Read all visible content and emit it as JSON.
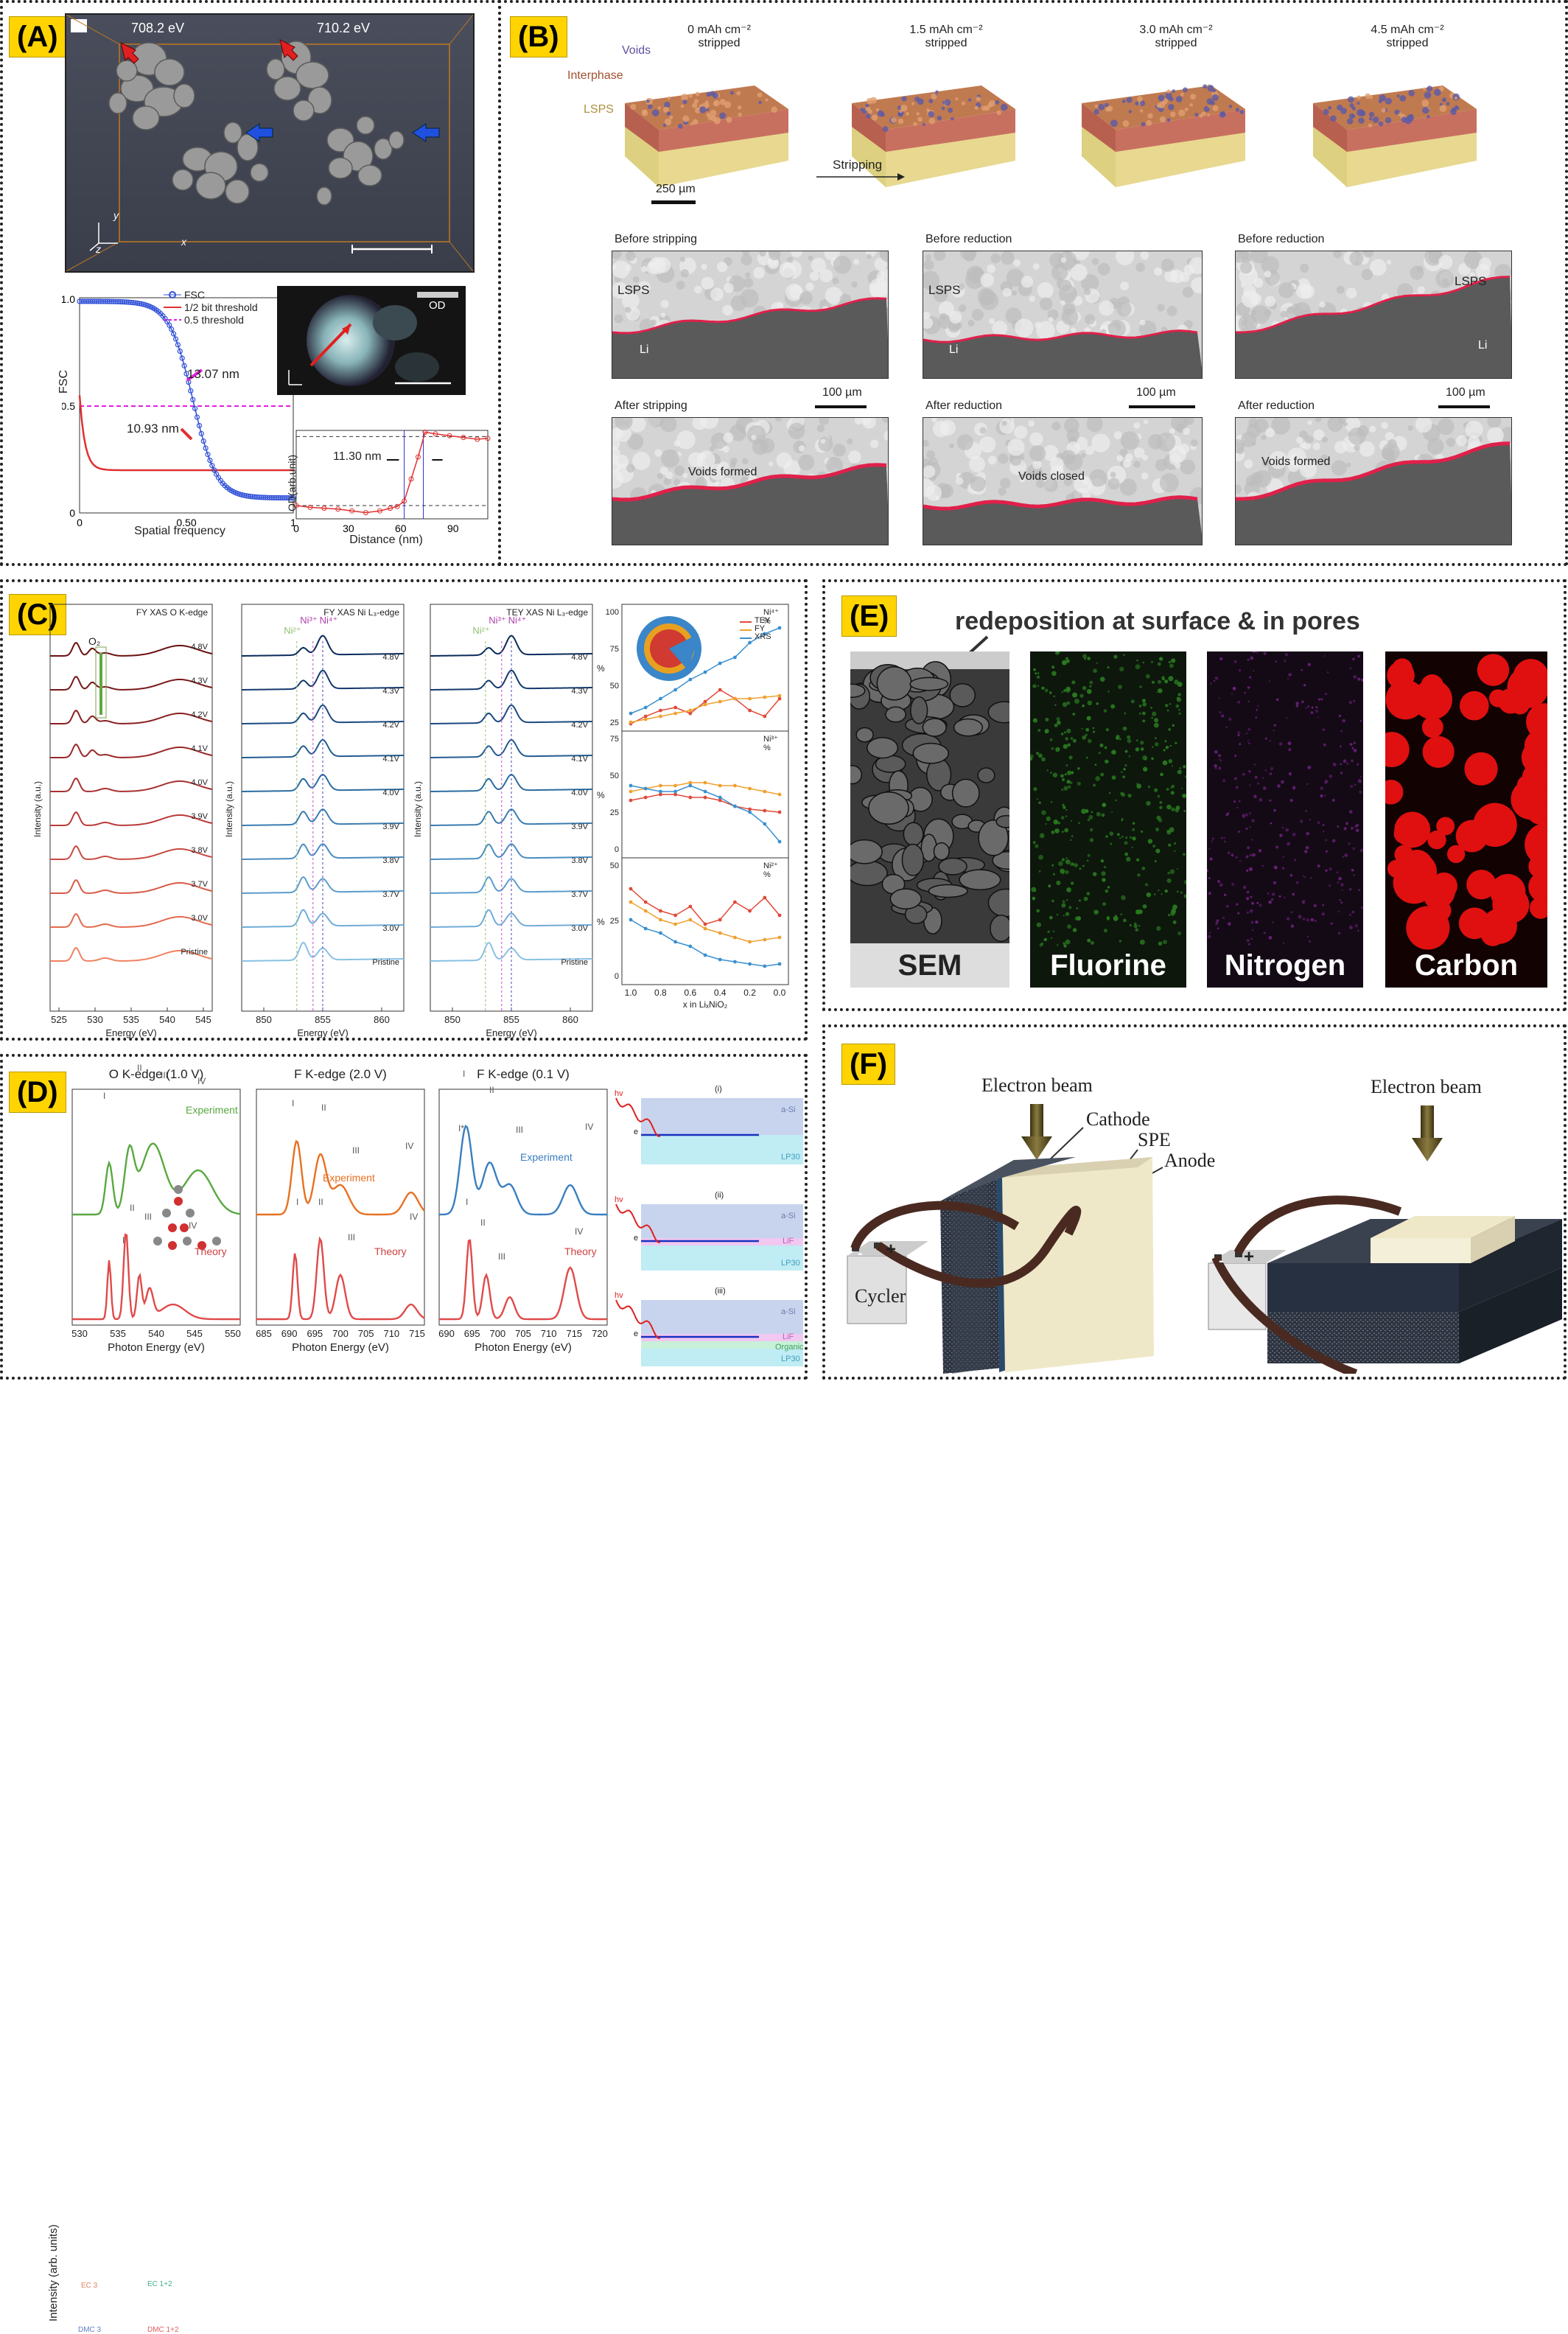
{
  "panels": {
    "a": {
      "label": "(A)"
    },
    "b": {
      "label": "(B)"
    },
    "c": {
      "label": "(C)"
    },
    "d": {
      "label": "(D)"
    },
    "e": {
      "label": "(E)"
    },
    "f": {
      "label": "(F)"
    }
  },
  "a": {
    "energy1": "708.2 eV",
    "energy2": "710.2 eV",
    "axis_y": "y",
    "axis_x": "x",
    "axis_z": "z",
    "fsc_legend": [
      "FSC",
      "1/2 bit threshold",
      "0.5 threshold"
    ],
    "fsc_ylabel": "FSC",
    "fsc_xlabel": "Spatial frequency",
    "fsc_ann1": "13.07 nm",
    "fsc_ann2": "10.93 nm",
    "od_label": "OD",
    "od_ylabel": "OD(arb.unit)",
    "od_xlabel": "Distance (nm)",
    "od_ann": "11.30 nm",
    "fsc_yticks": [
      "1.0",
      "0.5",
      "0"
    ],
    "fsc_xticks": [
      "0",
      "0.50",
      "1"
    ],
    "od_xticks": [
      "0",
      "30",
      "60",
      "90"
    ]
  },
  "b": {
    "labels": [
      "Voids",
      "Interphase",
      "LSPS"
    ],
    "stages": [
      "0 mAh cm⁻²\nstripped",
      "1.5 mAh cm⁻²\nstripped",
      "3.0 mAh cm⁻²\nstripped",
      "4.5 mAh cm⁻²\nstripped"
    ],
    "stage_line1": [
      "0 mAh cm⁻²",
      "1.5 mAh cm⁻²",
      "3.0 mAh cm⁻²",
      "4.5 mAh cm⁻²"
    ],
    "stage_line2": [
      "stripped",
      "stripped",
      "stripped",
      "stripped"
    ],
    "scale_top": "250 µm",
    "stripping": "Stripping",
    "top_titles": [
      "Before stripping",
      "Before reduction",
      "Before reduction"
    ],
    "bottom_titles": [
      "After stripping",
      "After reduction",
      "After reduction"
    ],
    "lsps": "LSPS",
    "li": "Li",
    "scale": "100 µm",
    "voids": [
      "Voids formed",
      "Voids closed",
      "Voids formed"
    ]
  },
  "c": {
    "titles": [
      "FY XAS O K-edge",
      "FY XAS Ni L₃-edge",
      "TEY XAS Ni L₃-edge"
    ],
    "o_voltages": [
      "4.8V",
      "4.3V",
      "4.2V",
      "4.1V",
      "4.0V",
      "3.9V",
      "3.8V",
      "3.7V",
      "3.0V",
      "Pristine"
    ],
    "ni_voltages": [
      "4.8V",
      "4.3V",
      "4.2V",
      "4.1V",
      "4.0V",
      "3.9V",
      "3.8V",
      "3.7V",
      "3.0V",
      "Pristine"
    ],
    "o2": "O₂",
    "ylabel": "Intensity (a.u.)",
    "xlabel": "Energy (eV)",
    "o_xticks": [
      "525",
      "530",
      "535",
      "540",
      "545"
    ],
    "ni_xticks": [
      "850",
      "855",
      "860"
    ],
    "ni_marks": [
      "Ni²⁺",
      "Ni³⁺",
      "Ni⁴⁺"
    ],
    "right_titles": [
      "Ni⁴⁺ %",
      "Ni³⁺ %",
      "Ni²⁺ %"
    ],
    "right_legend": [
      "TEY",
      "FY",
      "XRS"
    ],
    "right_xlabel": "x in LiₓNiO₂",
    "right_ylabel": "%",
    "right_xticks": [
      "1.0",
      "0.8",
      "0.6",
      "0.4",
      "0.2",
      "0.0"
    ],
    "right_yticks_top": [
      "100",
      "75",
      "50",
      "25"
    ],
    "right_yticks_mid": [
      "75",
      "50",
      "25",
      "0"
    ],
    "right_yticks_bot": [
      "50",
      "25",
      "0"
    ]
  },
  "d": {
    "titles": [
      "O K-edge (1.0 V)",
      "F K-edge (2.0 V)",
      "F K-edge (0.1 V)"
    ],
    "ylabel": "Intensity (arb. units)",
    "xlabel": "Photon Energy (eV)",
    "experiment": "Experiment",
    "theory": "Theory",
    "o_xticks": [
      "530",
      "535",
      "540",
      "545",
      "550"
    ],
    "f2_xticks": [
      "685",
      "690",
      "695",
      "700",
      "705",
      "710",
      "715"
    ],
    "f1_xticks": [
      "690",
      "695",
      "700",
      "705",
      "710",
      "715",
      "720"
    ],
    "peaks": [
      "I",
      "II",
      "III",
      "IV",
      "I*"
    ],
    "small_labels": [
      "EC 3",
      "DMC 3",
      "EC 1+2",
      "DMC 1+2"
    ],
    "schem_labels": [
      "(i)",
      "(ii)",
      "(iii)"
    ],
    "hv": "hv",
    "e": "e",
    "layers": [
      "a-Si",
      "LP30",
      "LiF",
      "Organic"
    ]
  },
  "e": {
    "title": "redeposition at surface & in pores",
    "maps": [
      "SEM",
      "Fluorine",
      "Nitrogen",
      "Carbon"
    ]
  },
  "f": {
    "beam": "Electron beam",
    "cathode": "Cathode",
    "spe": "SPE",
    "anode": "Anode",
    "cycler": "Cycler",
    "minus": "-",
    "plus": "+"
  },
  "colors": {
    "label_bg": "#ffd400",
    "red": "#e03030",
    "blue": "#3050d8",
    "magenta": "#e020e0",
    "orange": "#f08020",
    "green": "#60a840",
    "fluorine": "#2a7a20",
    "nitrogen": "#6a207a",
    "carbon": "#e01010"
  }
}
